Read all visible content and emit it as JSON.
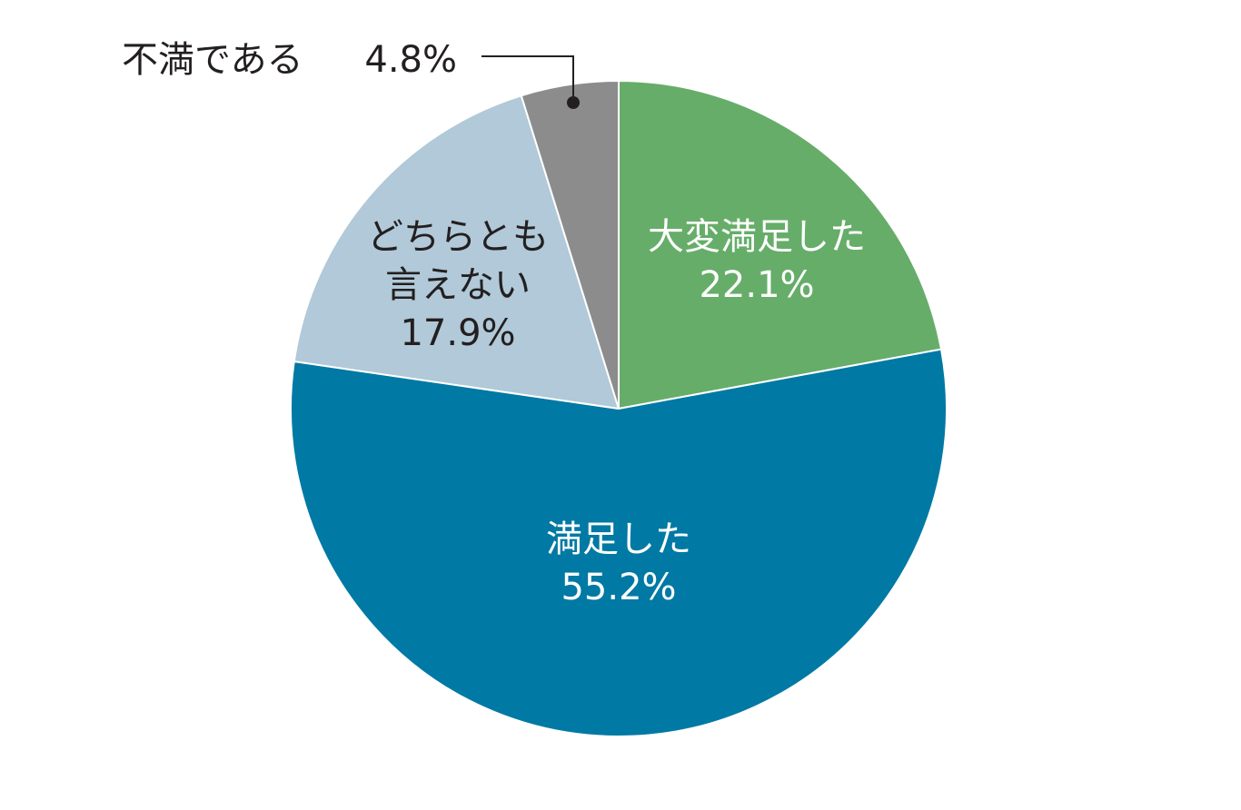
{
  "chart_data": {
    "type": "pie",
    "title": "",
    "slices": [
      {
        "label": "大変満足した",
        "label_lines": [
          "大変満足した"
        ],
        "value": 22.1,
        "value_text": "22.1%",
        "color": "#66ad69",
        "text_color": "#ffffff"
      },
      {
        "label": "満足した",
        "label_lines": [
          "満足した"
        ],
        "value": 55.2,
        "value_text": "55.2%",
        "color": "#0079a4",
        "text_color": "#ffffff"
      },
      {
        "label": "どちらとも言えない",
        "label_lines": [
          "どちらとも",
          "言えない"
        ],
        "value": 17.9,
        "value_text": "17.9%",
        "color": "#b1c9d8",
        "text_color": "#231f20"
      },
      {
        "label": "不満である",
        "label_lines": [
          "不満である"
        ],
        "value": 4.8,
        "value_text": "4.8%",
        "color": "#8c8c8c",
        "text_color": "#231f20",
        "callout": true
      }
    ],
    "start_angle": "12 o'clock",
    "direction": "clockwise",
    "legend": "none"
  }
}
